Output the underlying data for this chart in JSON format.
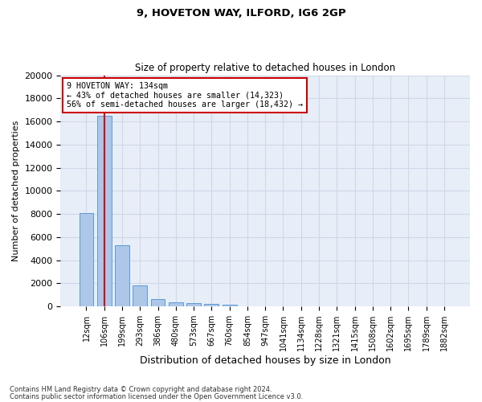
{
  "title1": "9, HOVETON WAY, ILFORD, IG6 2GP",
  "title2": "Size of property relative to detached houses in London",
  "xlabel": "Distribution of detached houses by size in London",
  "ylabel": "Number of detached properties",
  "categories": [
    "12sqm",
    "106sqm",
    "199sqm",
    "293sqm",
    "386sqm",
    "480sqm",
    "573sqm",
    "667sqm",
    "760sqm",
    "854sqm",
    "947sqm",
    "1041sqm",
    "1134sqm",
    "1228sqm",
    "1321sqm",
    "1415sqm",
    "1508sqm",
    "1602sqm",
    "1695sqm",
    "1789sqm",
    "1882sqm"
  ],
  "values": [
    8100,
    16500,
    5300,
    1850,
    650,
    350,
    270,
    220,
    170,
    0,
    0,
    0,
    0,
    0,
    0,
    0,
    0,
    0,
    0,
    0,
    0
  ],
  "bar_color": "#aec6e8",
  "bar_edge_color": "#5b9bd5",
  "vline_x": 1.0,
  "vline_color": "#cc0000",
  "annotation_title": "9 HOVETON WAY: 134sqm",
  "annotation_line1": "← 43% of detached houses are smaller (14,323)",
  "annotation_line2": "56% of semi-detached houses are larger (18,432) →",
  "annotation_box_color": "#ffffff",
  "annotation_box_edge": "#cc0000",
  "ylim": [
    0,
    20000
  ],
  "yticks": [
    0,
    2000,
    4000,
    6000,
    8000,
    10000,
    12000,
    14000,
    16000,
    18000,
    20000
  ],
  "grid_color": "#d0d8e8",
  "bg_color": "#e8eef8",
  "footer1": "Contains HM Land Registry data © Crown copyright and database right 2024.",
  "footer2": "Contains public sector information licensed under the Open Government Licence v3.0."
}
